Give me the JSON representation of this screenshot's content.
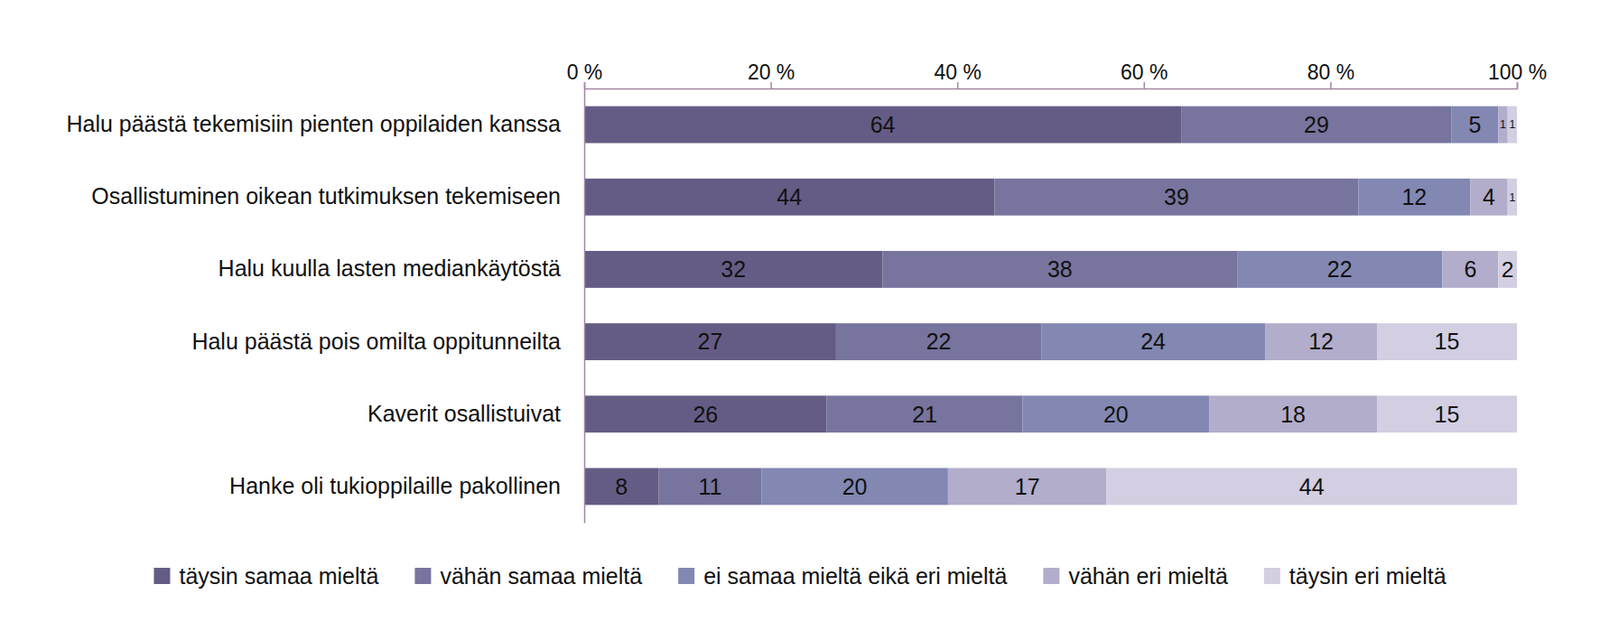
{
  "chart_data": {
    "type": "bar",
    "orientation": "horizontal",
    "stacked": true,
    "data_labels": true,
    "legend": "bottom",
    "categories": [
      "Halu päästä tekemisiin pienten oppilaiden kanssa",
      "Osallistuminen oikean tutkimuksen tekemiseen",
      "Halu kuulla lasten mediankäytöstä",
      "Halu päästä pois omilta oppitunneilta",
      "Kaverit osallistuivat",
      "Hanke oli tukioppilaille pakollinen"
    ],
    "series": [
      {
        "name": "täysin samaa mieltä",
        "color": "#655c85",
        "values": [
          64,
          44,
          32,
          27,
          26,
          8
        ]
      },
      {
        "name": "vähän samaa mieltä",
        "color": "#77749e",
        "values": [
          29,
          39,
          38,
          22,
          21,
          11
        ]
      },
      {
        "name": "ei samaa mieltä eikä eri mieltä",
        "color": "#8288b2",
        "values": [
          5,
          12,
          22,
          24,
          20,
          20
        ]
      },
      {
        "name": "vähän eri mieltä",
        "color": "#b2adca",
        "values": [
          1,
          4,
          6,
          12,
          18,
          17
        ]
      },
      {
        "name": "täysin eri mieltä",
        "color": "#d3cee1",
        "values": [
          1,
          1,
          2,
          15,
          15,
          44
        ]
      }
    ],
    "xlim": [
      0,
      100
    ],
    "xticks": [
      {
        "value": 0,
        "label": "0 %"
      },
      {
        "value": 20,
        "label": "20 %"
      },
      {
        "value": 40,
        "label": "40 %"
      },
      {
        "value": 60,
        "label": "60 %"
      },
      {
        "value": 80,
        "label": "80 %"
      },
      {
        "value": 100,
        "label": "100 %"
      }
    ],
    "grid": false
  }
}
